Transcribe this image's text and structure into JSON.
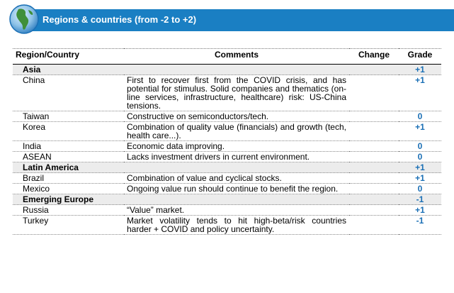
{
  "header": {
    "title": "Regions & countries (from -2 to +2)"
  },
  "table": {
    "columns": [
      "Region/Country",
      "Comments",
      "Change",
      "Grade"
    ],
    "rows": [
      {
        "type": "region",
        "name": "Asia",
        "comment": "",
        "change": "",
        "grade": "+1"
      },
      {
        "type": "country",
        "name": "China",
        "comment": "First to recover first from the COVID crisis, and has potential for stimulus. Solid companies and thematics (on-line services, infrastructure, healthcare) risk: US-China tensions.",
        "change": "",
        "grade": "+1"
      },
      {
        "type": "country",
        "name": "Taiwan",
        "comment": "Constructive on semiconductors/tech.",
        "change": "",
        "grade": "0"
      },
      {
        "type": "country",
        "name": "Korea",
        "comment": "Combination of quality value (financials) and growth (tech, health care...).",
        "change": "",
        "grade": "+1"
      },
      {
        "type": "country",
        "name": "India",
        "comment": "Economic data improving.",
        "change": "",
        "grade": "0"
      },
      {
        "type": "country",
        "name": "ASEAN",
        "comment": "Lacks investment drivers in current environment.",
        "change": "",
        "grade": "0"
      },
      {
        "type": "region",
        "name": "Latin America",
        "comment": "",
        "change": "",
        "grade": "+1"
      },
      {
        "type": "country",
        "name": "Brazil",
        "comment": "Combination of value and cyclical stocks.",
        "change": "",
        "grade": "+1"
      },
      {
        "type": "country",
        "name": "Mexico",
        "comment": "Ongoing value run should continue to benefit the region.",
        "change": "",
        "grade": "0"
      },
      {
        "type": "region",
        "name": "Emerging Europe",
        "comment": "",
        "change": "",
        "grade": "-1"
      },
      {
        "type": "country",
        "name": "Russia",
        "comment": "“Value” market.",
        "change": "",
        "grade": "+1"
      },
      {
        "type": "country",
        "name": "Turkey",
        "comment": "Market volatility tends to hit high-beta/risk countries harder + COVID and policy uncertainty.",
        "change": "",
        "grade": "-1"
      }
    ]
  }
}
